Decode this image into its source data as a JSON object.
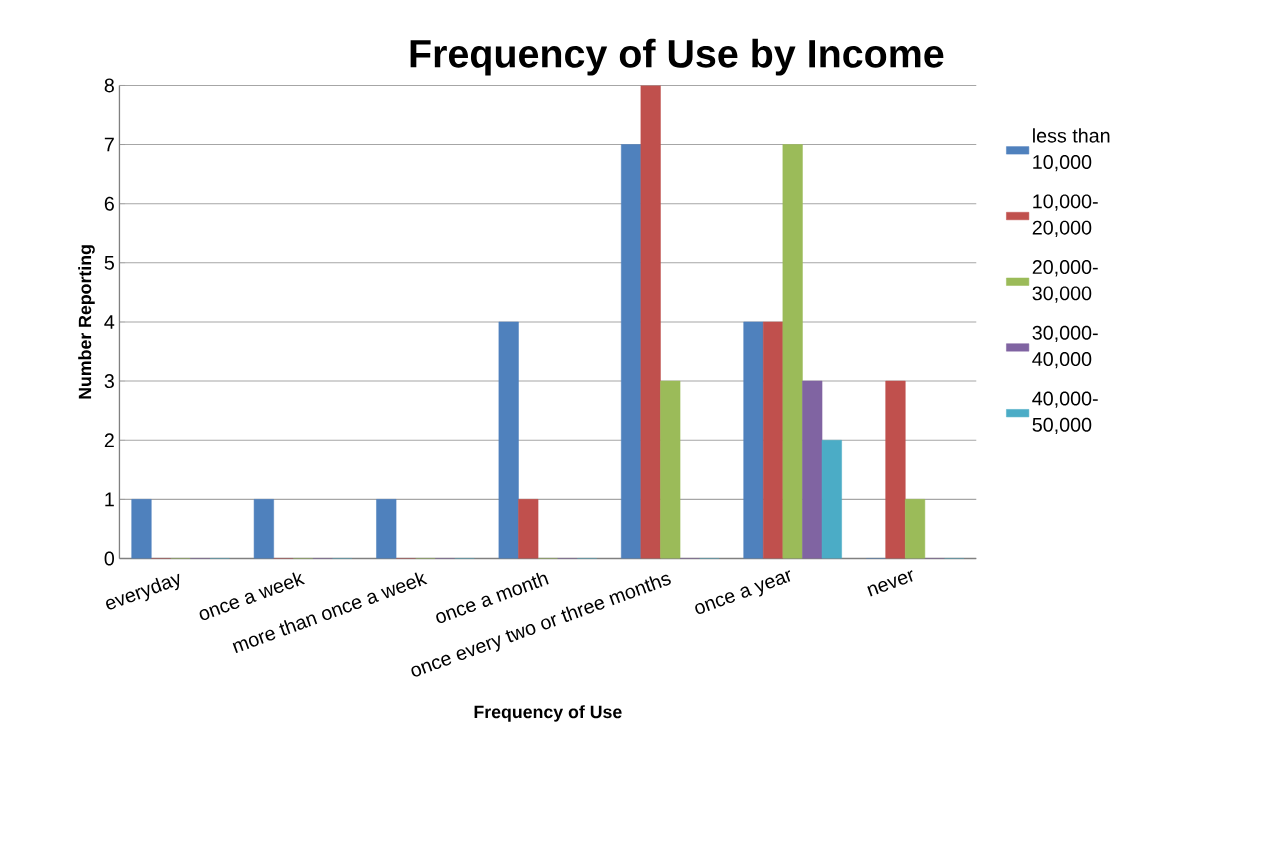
{
  "chart_data": {
    "type": "bar",
    "title": "Frequency of Use by Income",
    "xlabel": "Frequency of Use",
    "ylabel": "Number Reporting",
    "categories": [
      "everyday",
      "once a week",
      "more than once a week",
      "once a month",
      "once every two or three months",
      "once a year",
      "never"
    ],
    "series": [
      {
        "name": "less than 10,000",
        "color": "#4f81bd",
        "values": [
          1,
          1,
          1,
          4,
          7,
          4,
          0
        ]
      },
      {
        "name": "10,000-20,000",
        "color": "#c0504d",
        "values": [
          0,
          0,
          0,
          1,
          8,
          4,
          3
        ]
      },
      {
        "name": "20,000-30,000",
        "color": "#9bbb59",
        "values": [
          0,
          0,
          0,
          0,
          3,
          7,
          1
        ]
      },
      {
        "name": "30,000-40,000",
        "color": "#8064a2",
        "values": [
          0,
          0,
          0,
          0,
          0,
          3,
          0
        ]
      },
      {
        "name": "40,000-50,000",
        "color": "#4bacc6",
        "values": [
          0,
          0,
          0,
          0,
          0,
          2,
          0
        ]
      }
    ],
    "ylim": [
      0,
      8
    ],
    "yticks": [
      0,
      1,
      2,
      3,
      4,
      5,
      6,
      7,
      8
    ],
    "grid": "y",
    "legend": "right"
  }
}
